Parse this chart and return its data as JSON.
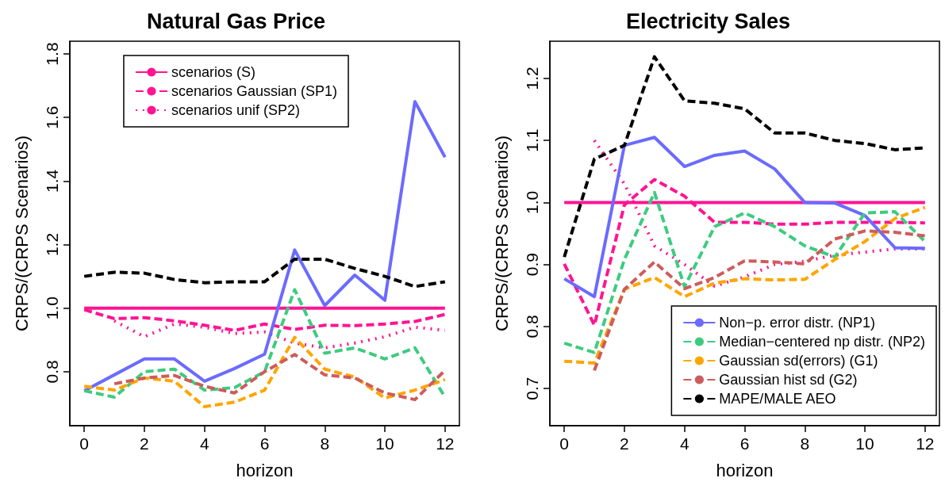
{
  "chart_data": [
    {
      "type": "line",
      "title": "Natural Gas Price",
      "xlabel": "horizon",
      "ylabel": "CRPS/(CRPS Scenarios)",
      "x": [
        0,
        1,
        2,
        3,
        4,
        5,
        6,
        7,
        8,
        9,
        10,
        11,
        12
      ],
      "xlim": [
        -0.48,
        12.48
      ],
      "xticks": [
        0,
        2,
        4,
        6,
        8,
        10,
        12
      ],
      "ylim": [
        0.63,
        1.84
      ],
      "yticks": [
        0.8,
        {
          "value": 1,
          "label": "1.0"
        },
        1.2,
        1.4,
        1.6,
        1.8
      ],
      "grid": false,
      "legend": "top",
      "marker": "none",
      "series": [
        {
          "name": "scenarios (S)",
          "color": "#ff1493",
          "line_style": "solid",
          "values": [
            1.0,
            1.0,
            1.0,
            1.0,
            1.0,
            1.0,
            1.0,
            1.0,
            1.0,
            1.0,
            1.0,
            1.0,
            1.0
          ]
        },
        {
          "name": "scenarios Gaussian (SP1)",
          "color": "#ff1493",
          "line_style": "dashed",
          "values": [
            0.995,
            0.967,
            0.97,
            0.96,
            0.946,
            0.93,
            0.95,
            0.933,
            0.946,
            0.945,
            0.95,
            0.958,
            0.98
          ]
        },
        {
          "name": "scenarios unif (SP2)",
          "color": "#ff1493",
          "line_style": "dotted",
          "values": [
            null,
            0.96,
            0.91,
            0.95,
            0.94,
            0.92,
            0.925,
            0.89,
            0.875,
            0.89,
            0.91,
            0.94,
            0.93
          ]
        },
        {
          "color": "#6b6bff",
          "line_style": "solid",
          "values": [
            0.74,
            0.79,
            0.84,
            0.84,
            0.77,
            0.81,
            0.855,
            1.183,
            1.008,
            1.104,
            1.025,
            1.65,
            1.475
          ]
        },
        {
          "color": "#3ecb7f",
          "line_style": "dashed",
          "values": [
            0.74,
            0.72,
            0.8,
            0.808,
            0.742,
            0.75,
            0.8,
            1.058,
            0.858,
            0.875,
            0.84,
            0.875,
            0.72
          ]
        },
        {
          "color": "#ffa500",
          "line_style": "dashed",
          "values": [
            0.754,
            0.742,
            0.78,
            0.77,
            0.69,
            0.704,
            0.742,
            0.908,
            0.808,
            0.783,
            0.717,
            0.742,
            0.775
          ]
        },
        {
          "color": "#cd5c5c",
          "line_style": "dashed",
          "values": [
            null,
            0.762,
            0.78,
            0.788,
            0.754,
            0.733,
            0.8,
            0.854,
            0.79,
            0.78,
            0.733,
            0.712,
            0.804
          ]
        },
        {
          "color": "#000000",
          "line_style": "dashed",
          "values": [
            1.1,
            1.113,
            1.11,
            1.09,
            1.08,
            1.083,
            1.083,
            1.154,
            1.154,
            1.125,
            1.1,
            1.068,
            1.083
          ]
        }
      ]
    },
    {
      "type": "line",
      "title": "Electricity Sales",
      "xlabel": "horizon",
      "ylabel": "CRPS/(CRPS Scenarios)",
      "x": [
        0,
        1,
        2,
        3,
        4,
        5,
        6,
        7,
        8,
        9,
        10,
        11,
        12
      ],
      "xlim": [
        -0.48,
        12.48
      ],
      "xticks": [
        0,
        2,
        4,
        6,
        8,
        10,
        12
      ],
      "ylim": [
        0.64,
        1.26
      ],
      "yticks": [
        0.7,
        0.8,
        0.9,
        {
          "value": 1,
          "label": "1.0"
        },
        1.1,
        1.2
      ],
      "grid": false,
      "legend": "bottom right",
      "marker": "none",
      "series": [
        {
          "color": "#ff1493",
          "line_style": "solid",
          "values": [
            1.0,
            1.0,
            1.0,
            1.0,
            1.0,
            1.0,
            1.0,
            1.0,
            1.0,
            1.0,
            1.0,
            1.0,
            1.0
          ]
        },
        {
          "color": "#ff1493",
          "line_style": "dashed",
          "values": [
            0.901,
            0.802,
            0.996,
            1.037,
            1.01,
            0.968,
            0.968,
            0.965,
            0.965,
            0.968,
            0.968,
            0.968,
            0.967
          ]
        },
        {
          "color": "#ff1493",
          "line_style": "dotted",
          "values": [
            null,
            1.1,
            1.03,
            0.93,
            0.9,
            0.865,
            0.88,
            0.9,
            0.905,
            0.915,
            0.92,
            0.925,
            0.925
          ]
        },
        {
          "name": "Non−p. error distr. (NP1)",
          "color": "#6b6bff",
          "line_style": "solid",
          "values": [
            0.877,
            0.848,
            1.092,
            1.105,
            1.058,
            1.076,
            1.083,
            1.054,
            1.0,
            0.999,
            0.979,
            0.927,
            0.926
          ]
        },
        {
          "name": "Median−centered np distr. (NP2)",
          "color": "#3ecb7f",
          "line_style": "dashed",
          "values": [
            0.773,
            0.758,
            0.908,
            1.016,
            0.864,
            0.961,
            0.983,
            0.961,
            0.93,
            0.912,
            0.983,
            0.985,
            0.937
          ]
        },
        {
          "name": "Gaussian sd(errors) (G1)",
          "color": "#ffa500",
          "line_style": "dashed",
          "values": [
            0.744,
            0.741,
            0.86,
            0.879,
            0.848,
            0.87,
            0.877,
            0.875,
            0.876,
            0.908,
            0.937,
            0.974,
            0.992
          ]
        },
        {
          "name": "Gaussian hist sd (G2)",
          "color": "#cd5c5c",
          "line_style": "dashed",
          "values": [
            null,
            0.729,
            0.86,
            0.904,
            0.861,
            0.879,
            0.906,
            0.904,
            0.901,
            0.941,
            0.954,
            0.952,
            0.946
          ]
        },
        {
          "name": "MAPE/MALE AEO",
          "color": "#000000",
          "line_style": "dashed",
          "values": [
            0.912,
            1.07,
            1.092,
            1.235,
            1.164,
            1.16,
            1.151,
            1.112,
            1.112,
            1.1,
            1.095,
            1.085,
            1.088
          ]
        }
      ]
    }
  ]
}
